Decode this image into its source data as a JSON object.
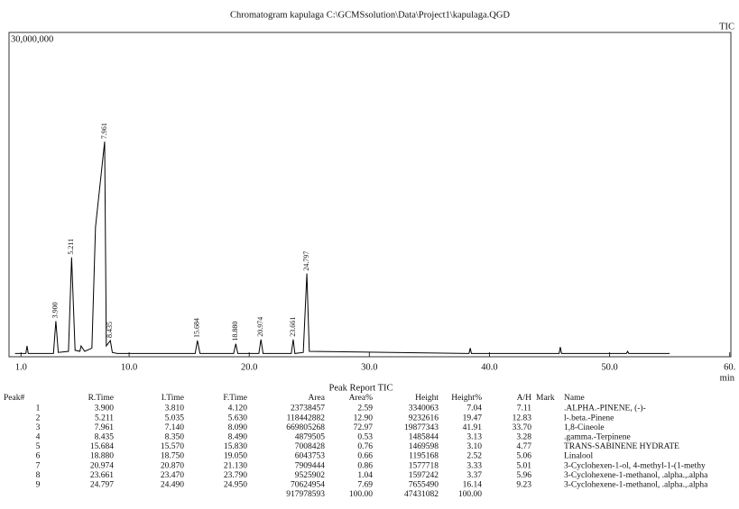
{
  "chart_data": {
    "type": "line",
    "title": "Chromatogram kapulaga C:\\GCMSsolution\\Data\\Project1\\kapulaga.QGD",
    "x_label": "min",
    "x": [
      0.5,
      1.4,
      1.5,
      1.6,
      3.7,
      3.9,
      4.1,
      4.95,
      5.211,
      5.5,
      5.9,
      6.0,
      6.3,
      6.9,
      7.2,
      7.961,
      8.1,
      8.435,
      8.6,
      9.0,
      15.5,
      15.684,
      15.9,
      18.7,
      18.88,
      19.05,
      20.8,
      20.974,
      21.15,
      23.5,
      23.661,
      23.8,
      24.5,
      24.797,
      25.0,
      38.3,
      38.4,
      38.5,
      45.8,
      45.9,
      46.0,
      51.4,
      51.5,
      51.6,
      55.0
    ],
    "series": [
      {
        "name": "TIC",
        "color": "#000000",
        "values": [
          300000,
          300000,
          1000000,
          300000,
          300000,
          3300000,
          400000,
          500000,
          9200000,
          600000,
          500000,
          1000000,
          500000,
          800000,
          12000000,
          19900000,
          1000000,
          1500000,
          400000,
          300000,
          300000,
          1500000,
          300000,
          300000,
          1200000,
          300000,
          300000,
          1600000,
          300000,
          300000,
          1600000,
          300000,
          400000,
          7700000,
          500000,
          300000,
          800000,
          300000,
          300000,
          900000,
          300000,
          300000,
          500000,
          300000,
          300000
        ]
      }
    ],
    "annotations": [
      {
        "x": 3.9,
        "y": 3300000,
        "label": "3.900"
      },
      {
        "x": 5.211,
        "y": 9200000,
        "label": "5.211"
      },
      {
        "x": 7.961,
        "y": 19900000,
        "label": "7.961"
      },
      {
        "x": 8.435,
        "y": 1500000,
        "label": "8.435"
      },
      {
        "x": 15.684,
        "y": 1500000,
        "label": "15.684"
      },
      {
        "x": 18.88,
        "y": 1200000,
        "label": "18.880"
      },
      {
        "x": 20.974,
        "y": 1600000,
        "label": "20.974"
      },
      {
        "x": 23.661,
        "y": 1600000,
        "label": "23.661"
      },
      {
        "x": 24.797,
        "y": 7700000,
        "label": "24.797"
      }
    ],
    "xlim": [
      0,
      60.1
    ],
    "xticks": [
      {
        "value": 1,
        "label": "1.0"
      },
      {
        "value": 10,
        "label": "10.0"
      },
      {
        "value": 20,
        "label": "20.0"
      },
      {
        "value": 30,
        "label": "30.0"
      },
      {
        "value": 40,
        "label": "40.0"
      },
      {
        "value": 50,
        "label": "50.0"
      },
      {
        "value": 60,
        "label": "60."
      }
    ],
    "ylim": [
      0,
      30000000
    ],
    "yticks": [
      {
        "value": 30000000,
        "label": "30,000,000"
      }
    ]
  },
  "table": {
    "title": "Peak Report TIC",
    "columns": [
      "Peak#",
      "R.Time",
      "I.Time",
      "F.Time",
      "Area",
      "Area%",
      "Height",
      "Height%",
      "A/H",
      "Mark",
      "Name"
    ],
    "rows": [
      [
        "1",
        "3.900",
        "3.810",
        "4.120",
        "23738457",
        "2.59",
        "3340063",
        "7.04",
        "7.11",
        ".ALPHA.-PINENE, (-)-"
      ],
      [
        "2",
        "5.211",
        "5.035",
        "5.630",
        "118442882",
        "12.90",
        "9232616",
        "19.47",
        "12.83",
        "l-.beta.-Pinene"
      ],
      [
        "3",
        "7.961",
        "7.140",
        "8.090",
        "669805268",
        "72.97",
        "19877343",
        "41.91",
        "33.70",
        "1,8-Cineole"
      ],
      [
        "4",
        "8.435",
        "8.350",
        "8.490",
        "4879505",
        "0.53",
        "1485844",
        "3.13",
        "3.28",
        ".gamma.-Terpinene"
      ],
      [
        "5",
        "15.684",
        "15.570",
        "15.830",
        "7008428",
        "0.76",
        "1469598",
        "3.10",
        "4.77",
        "TRANS-SABINENE HYDRATE"
      ],
      [
        "6",
        "18.880",
        "18.750",
        "19.050",
        "6043753",
        "0.66",
        "1195168",
        "2.52",
        "5.06",
        "Linalool"
      ],
      [
        "7",
        "20.974",
        "20.870",
        "21.130",
        "7909444",
        "0.86",
        "1577718",
        "3.33",
        "5.01",
        "3-Cyclohexen-1-ol, 4-methyl-1-(1-methy"
      ],
      [
        "8",
        "23.661",
        "23.470",
        "23.790",
        "9525902",
        "1.04",
        "1597242",
        "3.37",
        "5.96",
        "3-Cyclohexene-1-methanol, .alpha.,.alpha"
      ],
      [
        "9",
        "24.797",
        "24.490",
        "24.950",
        "70624954",
        "7.69",
        "7655490",
        "16.14",
        "9.23",
        "3-Cyclohexene-1-methanol, .alpha.,.alpha"
      ]
    ],
    "totals": [
      "917978593",
      "100.00",
      "47431082",
      "100.00"
    ]
  }
}
